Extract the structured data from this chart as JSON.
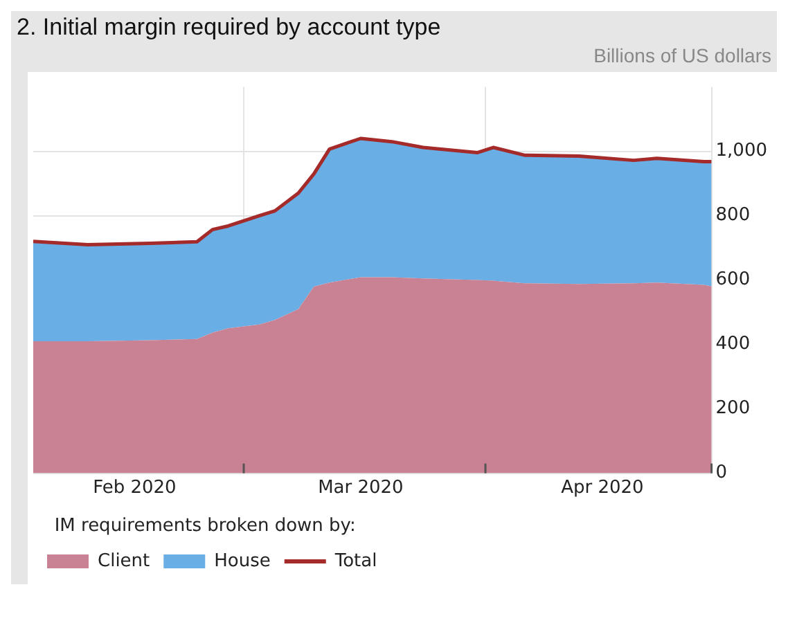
{
  "chart_data": {
    "type": "area",
    "title": "2. Initial margin required by account type",
    "ylabel": "Billions of US dollars",
    "legend_title": "IM requirements broken down by:",
    "x": [
      "2020-02-03",
      "2020-02-10",
      "2020-02-18",
      "2020-02-24",
      "2020-02-26",
      "2020-02-28",
      "2020-03-03",
      "2020-03-05",
      "2020-03-08",
      "2020-03-10",
      "2020-03-12",
      "2020-03-16",
      "2020-03-20",
      "2020-03-24",
      "2020-03-27",
      "2020-03-31",
      "2020-04-02",
      "2020-04-06",
      "2020-04-13",
      "2020-04-20",
      "2020-04-23",
      "2020-04-29",
      "2020-04-30"
    ],
    "stacked": true,
    "series": [
      {
        "name": "Client",
        "type": "area",
        "color": "#c98293",
        "values": [
          410,
          410,
          413,
          417,
          437,
          450,
          462,
          476,
          510,
          580,
          592,
          609,
          609,
          605,
          603,
          600,
          598,
          590,
          588,
          590,
          592,
          585,
          581
        ]
      },
      {
        "name": "House",
        "type": "area",
        "color": "#6aaee6",
        "values": [
          310,
          300,
          301,
          302,
          320,
          318,
          338,
          339,
          360,
          350,
          415,
          431,
          421,
          407,
          402,
          396,
          414,
          398,
          397,
          382,
          386,
          383,
          387
        ]
      },
      {
        "name": "Total",
        "type": "line",
        "color": "#a52a2a",
        "values": [
          720,
          710,
          714,
          719,
          757,
          768,
          800,
          815,
          870,
          930,
          1007,
          1040,
          1030,
          1012,
          1005,
          996,
          1012,
          988,
          985,
          972,
          978,
          968,
          968
        ]
      }
    ],
    "xlim": [
      "2020-02-03",
      "2020-04-30"
    ],
    "xticks": [
      {
        "value": "2020-02-16",
        "label": "Feb 2020"
      },
      {
        "value": "2020-03-01",
        "label": null
      },
      {
        "value": "2020-03-16",
        "label": "Mar 2020"
      },
      {
        "value": "2020-04-01",
        "label": null
      },
      {
        "value": "2020-04-16",
        "label": "Apr 2020"
      },
      {
        "value": "2020-04-30",
        "label": null
      }
    ],
    "ylim": [
      0,
      1200
    ],
    "yticks": [
      0,
      200,
      400,
      600,
      800,
      {
        "value": 1000,
        "label": "1,000"
      }
    ],
    "grid": true,
    "legend": "bottom left",
    "marker": "none",
    "line_style": "solid"
  }
}
